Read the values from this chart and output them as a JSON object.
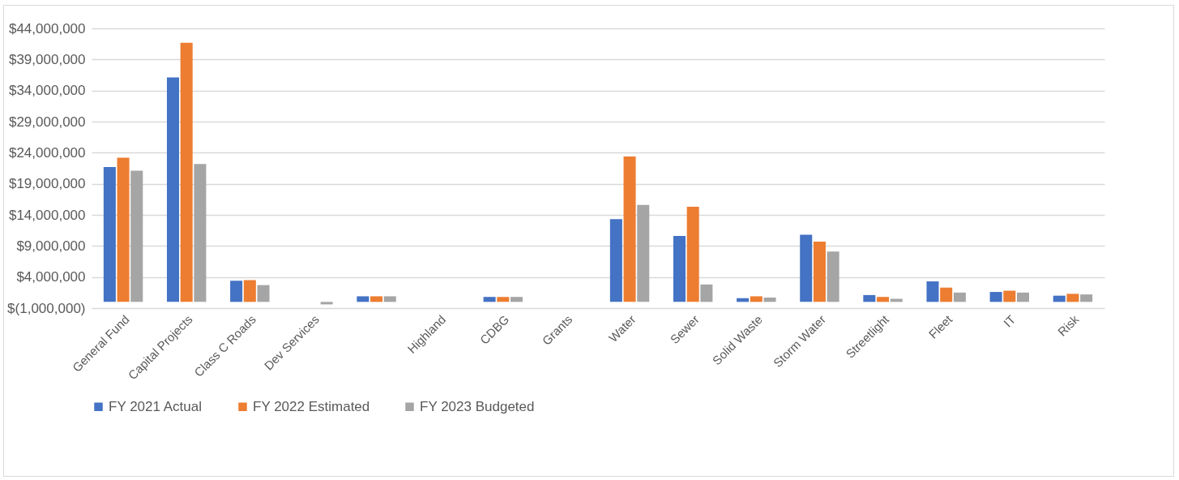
{
  "chart_data": {
    "type": "bar",
    "categories": [
      "General Fund",
      "Capital Projects",
      "Class C Roads",
      "Dev Services",
      null,
      "Highland",
      "CDBG",
      "Grants",
      "Water",
      "Sewer",
      "Solid Waste",
      "Storm Water",
      "Streetlight",
      "Fleet",
      "IT",
      "Risk"
    ],
    "series": [
      {
        "name": "FY 2021 Actual",
        "color": "#4472c4",
        "values": [
          21700000,
          36100000,
          3400000,
          0,
          900000,
          0,
          800000,
          0,
          13300000,
          10600000,
          600000,
          10800000,
          1100000,
          3300000,
          1600000,
          1000000
        ]
      },
      {
        "name": "FY 2022 Estimated",
        "color": "#ed7d31",
        "values": [
          23200000,
          41700000,
          3500000,
          0,
          900000,
          0,
          800000,
          0,
          23400000,
          15300000,
          900000,
          9700000,
          800000,
          2300000,
          1800000,
          1300000
        ]
      },
      {
        "name": "FY 2023 Budgeted",
        "color": "#a5a5a5",
        "values": [
          21100000,
          22200000,
          2700000,
          -400000,
          900000,
          0,
          800000,
          0,
          15600000,
          2800000,
          700000,
          8100000,
          500000,
          1500000,
          1500000,
          1200000
        ]
      }
    ],
    "ylim": [
      -1000000,
      44000000
    ],
    "yticks": [
      {
        "value": -1000000,
        "label": "$(1,000,000)"
      },
      {
        "value": 4000000,
        "label": "$4,000,000"
      },
      {
        "value": 9000000,
        "label": "$9,000,000"
      },
      {
        "value": 14000000,
        "label": "$14,000,000"
      },
      {
        "value": 19000000,
        "label": "$19,000,000"
      },
      {
        "value": 24000000,
        "label": "$24,000,000"
      },
      {
        "value": 29000000,
        "label": "$29,000,000"
      },
      {
        "value": 34000000,
        "label": "$34,000,000"
      },
      {
        "value": 39000000,
        "label": "$39,000,000"
      },
      {
        "value": 44000000,
        "label": "$44,000,000"
      }
    ],
    "grid": "y",
    "legend": "bottom"
  }
}
